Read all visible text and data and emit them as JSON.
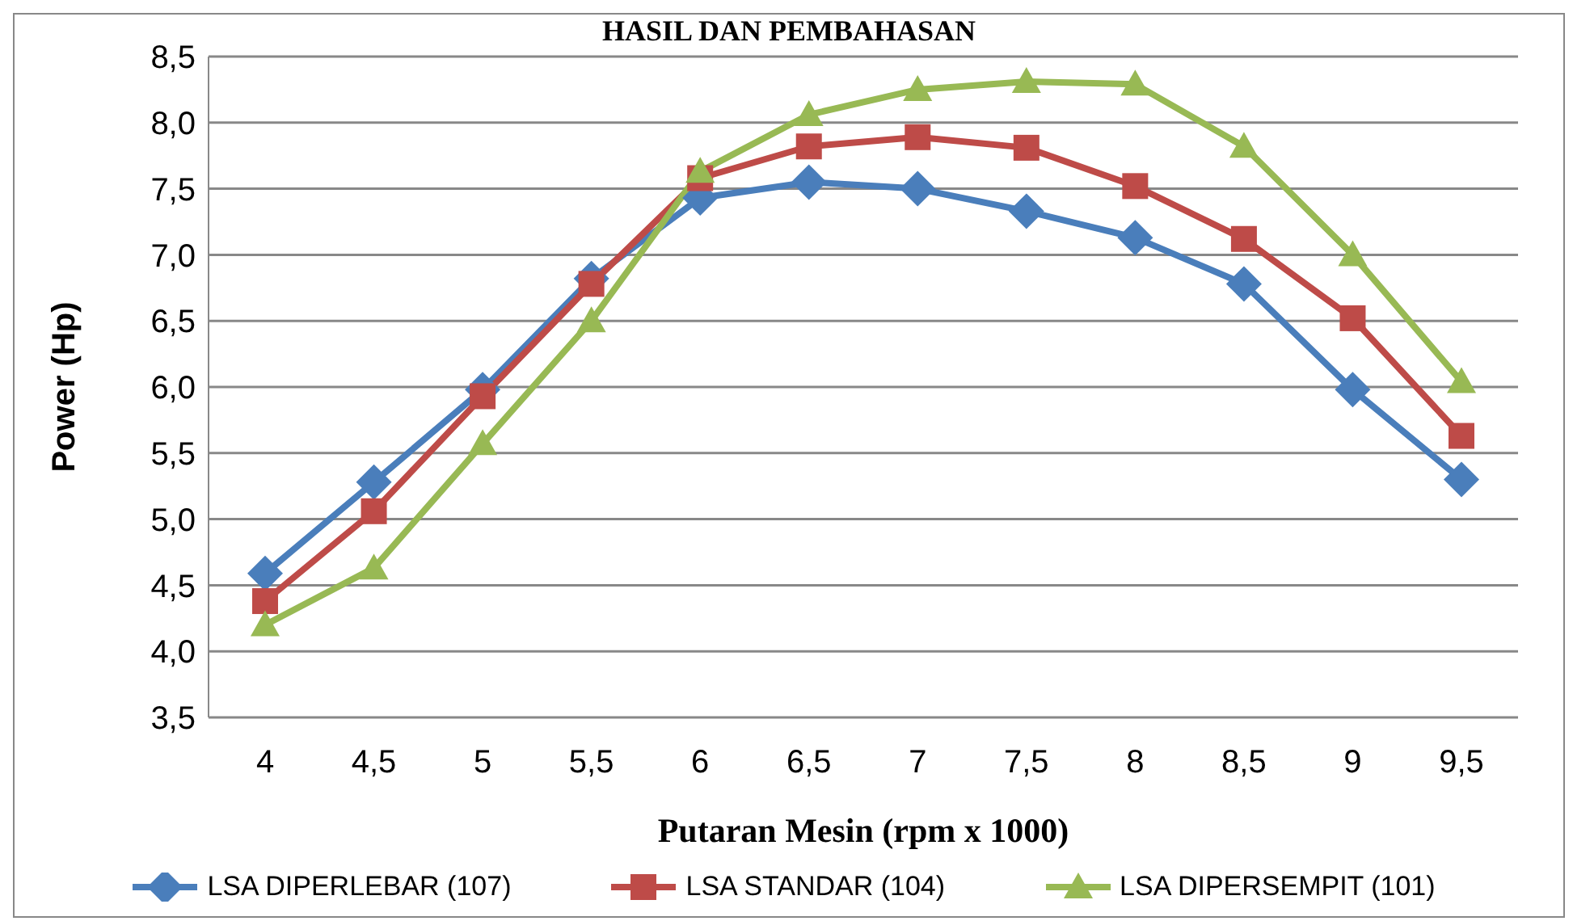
{
  "chart_data": {
    "type": "line",
    "title": "HASIL DAN PEMBAHASAN",
    "xlabel": "Putaran Mesin (rpm x 1000)",
    "ylabel": "Power (Hp)",
    "categories": [
      "4",
      "4,5",
      "5",
      "5,5",
      "6",
      "6,5",
      "7",
      "7,5",
      "8",
      "8,5",
      "9",
      "9,5"
    ],
    "series": [
      {
        "name": "LSA DIPERLEBAR (107)",
        "color": "#4a7ebb",
        "marker": "diamond",
        "values": [
          4.59,
          5.28,
          5.98,
          6.82,
          7.43,
          7.55,
          7.5,
          7.33,
          7.13,
          6.78,
          5.98,
          5.3
        ]
      },
      {
        "name": "LSA STANDAR (104)",
        "color": "#be4b48",
        "marker": "square",
        "values": [
          4.38,
          5.06,
          5.93,
          6.78,
          7.58,
          7.82,
          7.89,
          7.81,
          7.52,
          7.12,
          6.52,
          5.63
        ]
      },
      {
        "name": "LSA DIPERSEMPIT (101)",
        "color": "#98b954",
        "marker": "triangle",
        "values": [
          4.2,
          4.63,
          5.57,
          6.5,
          7.63,
          8.06,
          8.25,
          8.31,
          8.29,
          7.82,
          7.0,
          6.04
        ]
      }
    ],
    "ylim": [
      3.5,
      8.5
    ],
    "yticks": [
      {
        "value": 3.5,
        "label": "3,5"
      },
      {
        "value": 4,
        "label": "4,0"
      },
      {
        "value": 4.5,
        "label": "4,5"
      },
      {
        "value": 5,
        "label": "5,0"
      },
      {
        "value": 5.5,
        "label": "5,5"
      },
      {
        "value": 6,
        "label": "6,0"
      },
      {
        "value": 6.5,
        "label": "6,5"
      },
      {
        "value": 7,
        "label": "7,0"
      },
      {
        "value": 7.5,
        "label": "7,5"
      },
      {
        "value": 8,
        "label": "8,0"
      },
      {
        "value": 8.5,
        "label": "8,5"
      }
    ],
    "grid": "y",
    "legend": "bottom",
    "line_style": "solid"
  }
}
